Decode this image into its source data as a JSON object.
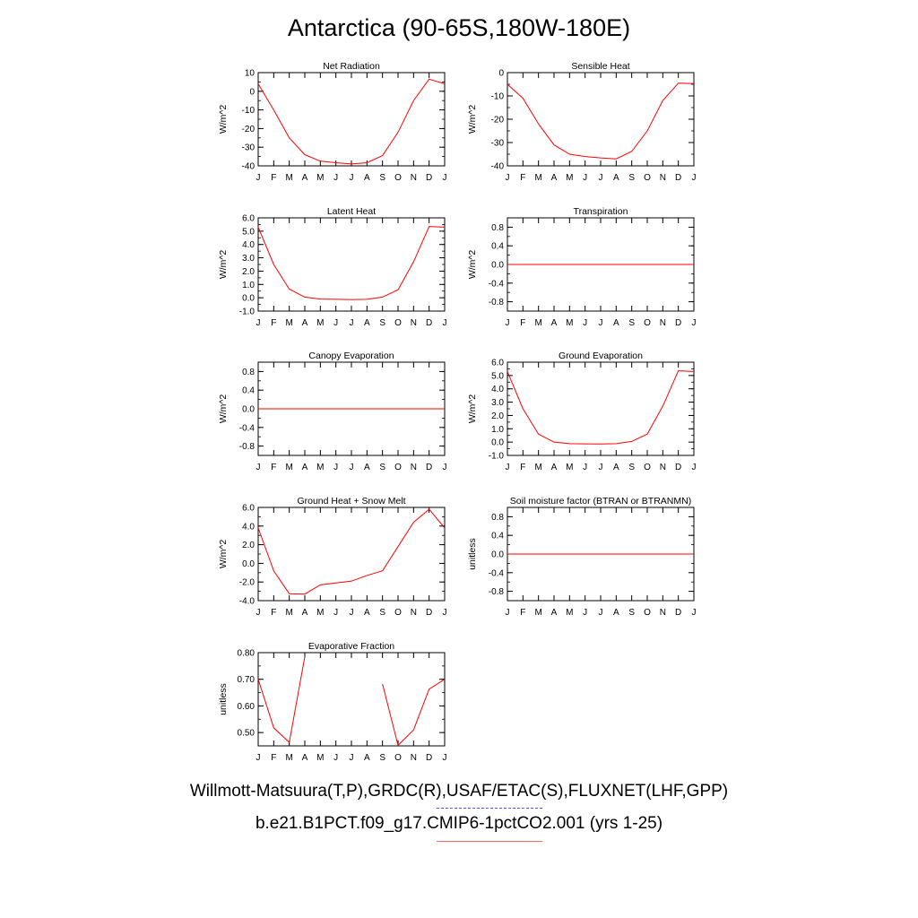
{
  "title": "Antarctica (90-65S,180W-180E)",
  "footer": {
    "observations": "Willmott-Matsuura(T,P),GRDC(R),USAF/ETAC(S),FLUXNET(LHF,GPP)",
    "model": "b.e21.B1PCT.f09_g17.CMIP6-1pctCO2.001 (yrs 1-25)"
  },
  "colors": {
    "series": "#ff0000",
    "observations_line": "#5555ff",
    "model_line": "#ff6666"
  },
  "chart_data": [
    {
      "type": "line",
      "title": "Net Radiation",
      "ylabel": "W/m^2",
      "ylim": [
        -40,
        10
      ],
      "yticks": [
        -40,
        -30,
        -20,
        -10,
        0,
        10
      ],
      "ytick_labels": [
        "-40",
        "-30",
        "-20",
        "-10",
        "0",
        "10"
      ],
      "x": [
        "J",
        "F",
        "M",
        "A",
        "M",
        "J",
        "J",
        "A",
        "S",
        "O",
        "N",
        "D",
        "J"
      ],
      "values": [
        4,
        -10,
        -25,
        -34,
        -37.5,
        -38.3,
        -39,
        -38.3,
        -34.5,
        -22,
        -5,
        6.5,
        4
      ]
    },
    {
      "type": "line",
      "title": "Sensible Heat",
      "ylabel": "W/m^2",
      "ylim": [
        -40,
        0
      ],
      "yticks": [
        -40,
        -30,
        -20,
        -10,
        0
      ],
      "ytick_labels": [
        "-40",
        "-30",
        "-20",
        "-10",
        "0"
      ],
      "x": [
        "J",
        "F",
        "M",
        "A",
        "M",
        "J",
        "J",
        "A",
        "S",
        "O",
        "N",
        "D",
        "J"
      ],
      "values": [
        -5,
        -11,
        -22,
        -31,
        -35,
        -36,
        -36.6,
        -37,
        -33.8,
        -25,
        -12,
        -4.5,
        -4.7
      ]
    },
    {
      "type": "line",
      "title": "Latent Heat",
      "ylabel": "W/m^2",
      "ylim": [
        -1,
        6
      ],
      "yticks": [
        -1,
        0,
        1,
        2,
        3,
        4,
        5,
        6
      ],
      "ytick_labels": [
        "-1.0",
        "0.0",
        "1.0",
        "2.0",
        "3.0",
        "4.0",
        "5.0",
        "6.0"
      ],
      "x": [
        "J",
        "F",
        "M",
        "A",
        "M",
        "J",
        "J",
        "A",
        "S",
        "O",
        "N",
        "D",
        "J"
      ],
      "values": [
        5.3,
        2.5,
        0.65,
        0.05,
        -0.1,
        -0.12,
        -0.13,
        -0.12,
        0.05,
        0.6,
        2.7,
        5.35,
        5.3
      ]
    },
    {
      "type": "line",
      "title": "Transpiration",
      "ylabel": "W/m^2",
      "ylim": [
        -1,
        1
      ],
      "yticks": [
        -0.8,
        -0.4,
        0,
        0.4,
        0.8
      ],
      "ytick_labels": [
        "-0.8",
        "-0.4",
        "0.0",
        "0.4",
        "0.8"
      ],
      "x": [
        "J",
        "F",
        "M",
        "A",
        "M",
        "J",
        "J",
        "A",
        "S",
        "O",
        "N",
        "D",
        "J"
      ],
      "values": [
        0,
        0,
        0,
        0,
        0,
        0,
        0,
        0,
        0,
        0,
        0,
        0,
        0
      ]
    },
    {
      "type": "line",
      "title": "Canopy Evaporation",
      "ylabel": "W/m^2",
      "ylim": [
        -1,
        1
      ],
      "yticks": [
        -0.8,
        -0.4,
        0,
        0.4,
        0.8
      ],
      "ytick_labels": [
        "-0.8",
        "-0.4",
        "0.0",
        "0.4",
        "0.8"
      ],
      "x": [
        "J",
        "F",
        "M",
        "A",
        "M",
        "J",
        "J",
        "A",
        "S",
        "O",
        "N",
        "D",
        "J"
      ],
      "values": [
        0,
        0,
        0,
        0,
        0,
        0,
        0,
        0,
        0,
        0,
        0,
        0,
        0
      ]
    },
    {
      "type": "line",
      "title": "Ground Evaporation",
      "ylabel": "W/m^2",
      "ylim": [
        -1,
        6
      ],
      "yticks": [
        -1,
        0,
        1,
        2,
        3,
        4,
        5,
        6
      ],
      "ytick_labels": [
        "-1.0",
        "0.0",
        "1.0",
        "2.0",
        "3.0",
        "4.0",
        "5.0",
        "6.0"
      ],
      "x": [
        "J",
        "F",
        "M",
        "A",
        "M",
        "J",
        "J",
        "A",
        "S",
        "O",
        "N",
        "D",
        "J"
      ],
      "values": [
        5.3,
        2.5,
        0.6,
        0.0,
        -0.12,
        -0.13,
        -0.14,
        -0.12,
        0.05,
        0.6,
        2.7,
        5.35,
        5.3
      ]
    },
    {
      "type": "line",
      "title": "Ground Heat + Snow Melt",
      "ylabel": "W/m^2",
      "ylim": [
        -4,
        6
      ],
      "yticks": [
        -4,
        -2,
        0,
        2,
        4,
        6
      ],
      "ytick_labels": [
        "-4.0",
        "-2.0",
        "0.0",
        "2.0",
        "4.0",
        "6.0"
      ],
      "x": [
        "J",
        "F",
        "M",
        "A",
        "M",
        "J",
        "J",
        "A",
        "S",
        "O",
        "N",
        "D",
        "J"
      ],
      "values": [
        3.8,
        -0.8,
        -3.25,
        -3.3,
        -2.3,
        -2.1,
        -1.9,
        -1.3,
        -0.8,
        1.8,
        4.4,
        5.8,
        3.8
      ]
    },
    {
      "type": "line",
      "title": "Soil moisture factor (BTRAN or BTRANMN)",
      "ylabel": "unitless",
      "ylim": [
        -1,
        1
      ],
      "yticks": [
        -0.8,
        -0.4,
        0,
        0.4,
        0.8
      ],
      "ytick_labels": [
        "-0.8",
        "-0.4",
        "0.0",
        "0.4",
        "0.8"
      ],
      "x": [
        "J",
        "F",
        "M",
        "A",
        "M",
        "J",
        "J",
        "A",
        "S",
        "O",
        "N",
        "D",
        "J"
      ],
      "values": [
        0,
        0,
        0,
        0,
        0,
        0,
        0,
        0,
        0,
        0,
        0,
        0,
        0
      ]
    },
    {
      "type": "line",
      "title": "Evaporative Fraction",
      "ylabel": "unitless",
      "ylim": [
        0.45,
        0.8
      ],
      "yticks": [
        0.5,
        0.6,
        0.7,
        0.8
      ],
      "ytick_labels": [
        "0.50",
        "0.60",
        "0.70",
        "0.80"
      ],
      "x": [
        "J",
        "F",
        "M",
        "A",
        "M",
        "J",
        "J",
        "A",
        "S",
        "O",
        "N",
        "D",
        "J"
      ],
      "values": [
        0.7,
        0.518,
        0.463,
        0.785,
        null,
        null,
        null,
        null,
        0.682,
        0.452,
        0.51,
        0.663,
        0.7
      ]
    }
  ]
}
